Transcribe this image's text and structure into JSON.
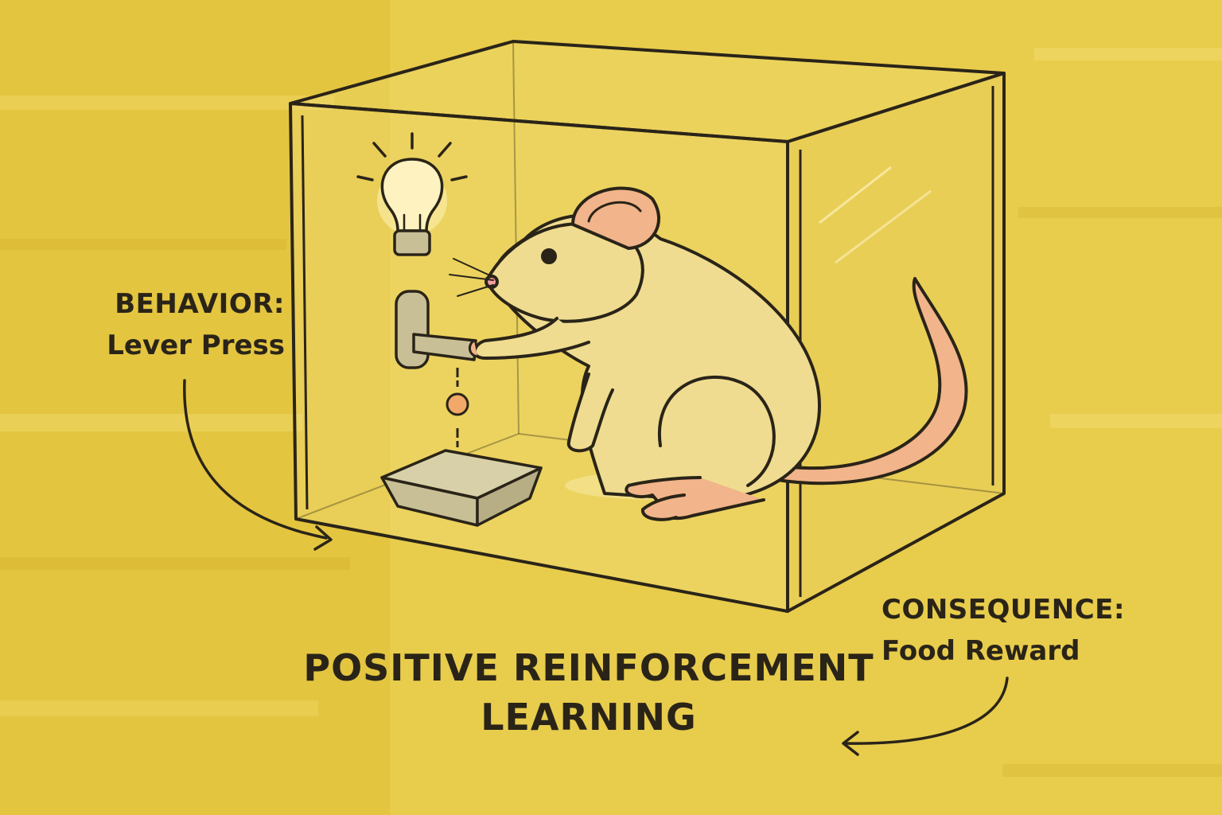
{
  "labels": {
    "behavior": {
      "heading": "BEHAVIOR:",
      "detail": "Lever Press"
    },
    "consequence": {
      "heading": "CONSEQUENCE:",
      "detail": "Food Reward"
    }
  },
  "title": {
    "line1": "POSITIVE REINFORCEMENT",
    "line2": "LEARNING"
  },
  "illustration": {
    "icons": [
      "light-bulb-icon",
      "lever-icon",
      "food-pellet-icon",
      "food-tray-icon",
      "rat-icon",
      "box-icon",
      "arrow-icon"
    ]
  },
  "colors": {
    "background": "#e8cc4c",
    "outline": "#2a2418",
    "rat_fur": "#efdc90",
    "rat_skin": "#f2b48a",
    "metal": "#c9bf96",
    "glow": "#fff6c4"
  }
}
